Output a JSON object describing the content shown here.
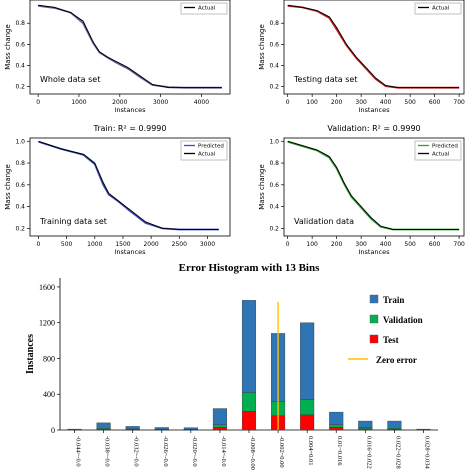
{
  "chart_data": [
    {
      "type": "line",
      "title": "",
      "xlabel": "Instances",
      "ylabel": "Mass change",
      "xlim": [
        -200,
        4700
      ],
      "ylim": [
        0.13,
        1.02
      ],
      "xticks": [
        "0",
        "1000",
        "2000",
        "3000",
        "4000"
      ],
      "yticks": [
        "0.2",
        "0.4",
        "0.6",
        "0.8"
      ],
      "annotation": "Whole data set",
      "legend_position": "top-right",
      "legend": [
        "Actual"
      ],
      "colors": {
        "predicted": "#6f5a9e",
        "actual": "#000000"
      },
      "x": [
        0,
        400,
        800,
        1100,
        1350,
        1500,
        1700,
        1900,
        2200,
        2500,
        2800,
        3200,
        3600,
        4000,
        4500
      ],
      "series": [
        {
          "name": "Actual",
          "values": [
            0.97,
            0.95,
            0.9,
            0.82,
            0.62,
            0.53,
            0.48,
            0.44,
            0.38,
            0.3,
            0.22,
            0.19,
            0.19,
            0.19,
            0.19
          ]
        }
      ],
      "predicted_values": [
        0.965,
        0.945,
        0.9,
        0.8,
        0.61,
        0.525,
        0.475,
        0.43,
        0.37,
        0.29,
        0.215,
        0.195,
        0.19,
        0.19,
        0.19
      ]
    },
    {
      "type": "line",
      "title": "",
      "xlabel": "Instances",
      "ylabel": "Mass change",
      "xlim": [
        -15,
        720
      ],
      "ylim": [
        0.13,
        1.02
      ],
      "xticks": [
        "0",
        "100",
        "200",
        "300",
        "400",
        "500",
        "600",
        "700"
      ],
      "yticks": [
        "0.2",
        "0.4",
        "0.6",
        "0.8"
      ],
      "annotation": "Testing data set",
      "legend_position": "top-right",
      "legend": [
        "Actual"
      ],
      "colors": {
        "predicted": "#cc2222",
        "actual": "#000000"
      },
      "x": [
        0,
        60,
        120,
        170,
        200,
        240,
        280,
        320,
        360,
        400,
        450,
        500,
        600,
        700
      ],
      "series": [
        {
          "name": "Actual",
          "values": [
            0.97,
            0.95,
            0.92,
            0.86,
            0.76,
            0.6,
            0.48,
            0.38,
            0.28,
            0.21,
            0.19,
            0.19,
            0.19,
            0.19
          ]
        }
      ],
      "predicted_values": [
        0.965,
        0.95,
        0.915,
        0.85,
        0.74,
        0.59,
        0.47,
        0.37,
        0.27,
        0.205,
        0.19,
        0.19,
        0.19,
        0.19
      ]
    },
    {
      "type": "line",
      "title": "Train: R² = 0.9990",
      "xlabel": "Instances",
      "ylabel": "Mass change",
      "xlim": [
        -150,
        3400
      ],
      "ylim": [
        0.13,
        1.03
      ],
      "xticks": [
        "0",
        "500",
        "1000",
        "1500",
        "2000",
        "2500",
        "3000"
      ],
      "yticks": [
        "0.2",
        "0.4",
        "0.6",
        "0.8",
        "1.0"
      ],
      "annotation": "Training data set",
      "legend_position": "top-right",
      "legend": [
        "Predicted",
        "Actual"
      ],
      "colors": {
        "predicted": "#3b4cc0",
        "actual": "#000000"
      },
      "x": [
        0,
        400,
        800,
        1000,
        1150,
        1250,
        1400,
        1600,
        1900,
        2200,
        2500,
        2800,
        3200
      ],
      "series": [
        {
          "name": "Actual",
          "values": [
            1.0,
            0.93,
            0.88,
            0.8,
            0.62,
            0.52,
            0.46,
            0.38,
            0.26,
            0.2,
            0.19,
            0.19,
            0.19
          ]
        }
      ],
      "predicted_values": [
        0.995,
        0.93,
        0.875,
        0.79,
        0.6,
        0.51,
        0.455,
        0.37,
        0.25,
        0.2,
        0.19,
        0.19,
        0.19
      ]
    },
    {
      "type": "line",
      "title": "Validation: R² = 0.9990",
      "xlabel": "Instances",
      "ylabel": "Mass change",
      "xlim": [
        -15,
        720
      ],
      "ylim": [
        0.13,
        1.03
      ],
      "xticks": [
        "0",
        "100",
        "200",
        "300",
        "400",
        "500",
        "600",
        "700"
      ],
      "yticks": [
        "0.2",
        "0.4",
        "0.6",
        "0.8",
        "1.0"
      ],
      "annotation": "Validation data",
      "legend_position": "top-right",
      "legend": [
        "Predicted",
        "Actual"
      ],
      "colors": {
        "predicted": "#2ca02c",
        "actual": "#000000"
      },
      "x": [
        0,
        60,
        120,
        170,
        200,
        230,
        260,
        300,
        340,
        380,
        430,
        500,
        600,
        700
      ],
      "series": [
        {
          "name": "Actual",
          "values": [
            1.0,
            0.96,
            0.92,
            0.86,
            0.76,
            0.62,
            0.5,
            0.4,
            0.3,
            0.22,
            0.19,
            0.19,
            0.19,
            0.19
          ]
        }
      ],
      "predicted_values": [
        0.995,
        0.955,
        0.915,
        0.85,
        0.75,
        0.61,
        0.49,
        0.39,
        0.29,
        0.215,
        0.19,
        0.19,
        0.19,
        0.19
      ]
    },
    {
      "type": "bar",
      "stacked": true,
      "title": "Error Histogram with 13 Bins",
      "xlabel": "",
      "ylabel": "Instances",
      "ylim": [
        0,
        1700
      ],
      "yticks": [
        "0",
        "400",
        "800",
        "1200",
        "1600"
      ],
      "categories": [
        "-0.044~-0.0",
        "-0.038~-0.0",
        "-0.032~-0.0",
        "-0.026~-0.0",
        "-0.020~-0.0",
        "-0.014~-0.0",
        "-0.008~-0.00",
        "-0.002~0.00",
        "0.004~0.01",
        "0.01~0.016",
        "0.016~0.022",
        "0.022~0.028",
        "0.028~0.034"
      ],
      "series": [
        {
          "name": "Test",
          "values": [
            2,
            10,
            6,
            4,
            4,
            30,
            210,
            160,
            170,
            30,
            14,
            10,
            2
          ]
        },
        {
          "name": "Validation",
          "values": [
            2,
            10,
            6,
            4,
            4,
            30,
            210,
            160,
            170,
            30,
            14,
            10,
            2
          ]
        },
        {
          "name": "Train",
          "values": [
            6,
            60,
            28,
            20,
            18,
            180,
            1030,
            760,
            860,
            140,
            72,
            80,
            6
          ]
        }
      ],
      "zero_error_category_index": 7,
      "legend_position": "right",
      "legend": [
        "Train",
        "Validation",
        "Test",
        "Zero error"
      ],
      "colors": {
        "train": "#2e75b6",
        "validation": "#00b050",
        "test": "#ff0000",
        "zero_error": "#ffc000"
      }
    }
  ]
}
